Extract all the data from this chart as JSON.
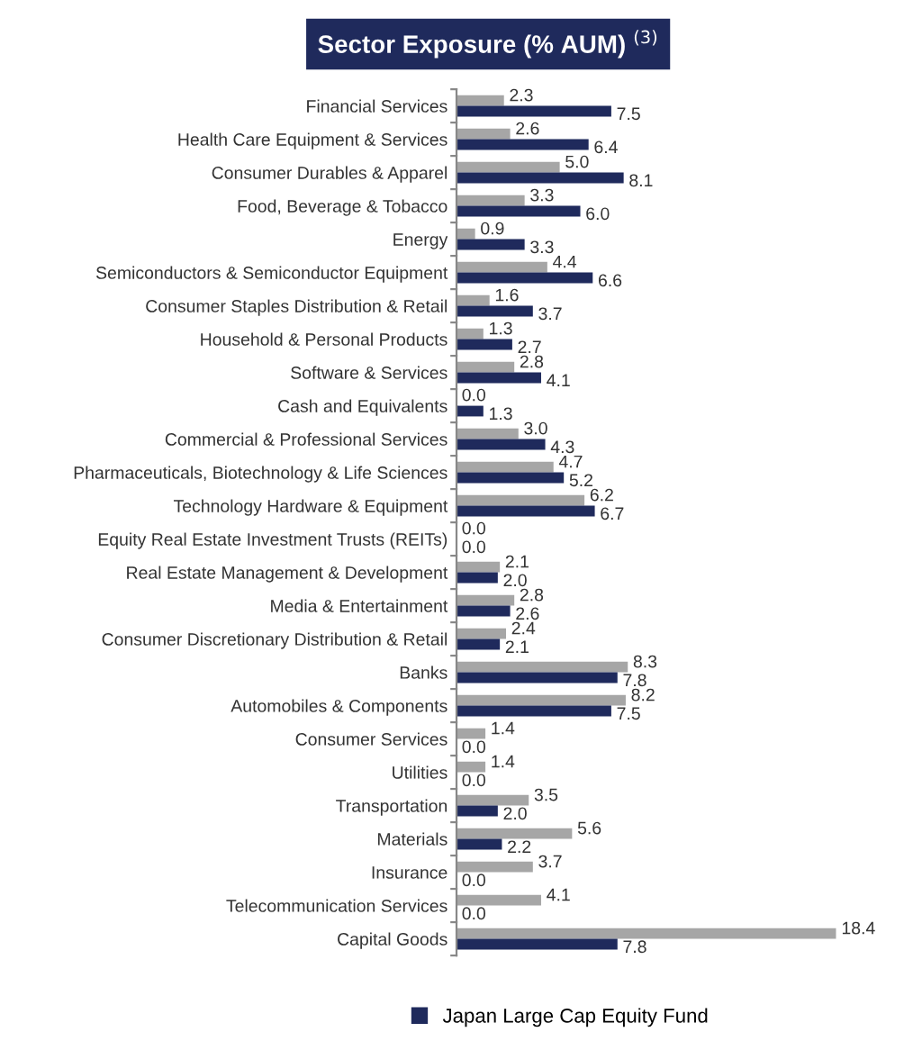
{
  "chart_data": {
    "type": "bar",
    "orientation": "horizontal",
    "title": "Sector Exposure (% AUM) $^{(3)}$",
    "categories": [
      "Financial Services",
      "Health Care Equipment & Services",
      "Consumer Durables & Apparel",
      "Food, Beverage & Tobacco",
      "Energy",
      "Semiconductors & Semiconductor Equipment",
      "Consumer Staples Distribution & Retail",
      "Household & Personal Products",
      "Software & Services",
      "Cash and Equivalents",
      "Commercial & Professional Services",
      "Pharmaceuticals, Biotechnology & Life Sciences",
      "Technology Hardware & Equipment",
      "Equity Real Estate Investment Trusts (REITs)",
      "Real Estate Management & Development",
      "Media & Entertainment",
      "Consumer Discretionary Distribution & Retail",
      "Banks",
      "Automobiles & Components",
      "Consumer Services",
      "Utilities",
      "Transportation",
      "Materials",
      "Insurance",
      "Telecommunication Services",
      "Capital Goods"
    ],
    "series": [
      {
        "color": "#a6a6a6",
        "values": [
          2.3,
          2.6,
          5.0,
          3.3,
          0.9,
          4.4,
          1.6,
          1.3,
          2.8,
          0.0,
          3.0,
          4.7,
          6.2,
          0.0,
          2.1,
          2.8,
          2.4,
          8.3,
          8.2,
          1.4,
          1.4,
          3.5,
          5.6,
          3.7,
          4.1,
          18.4
        ],
        "value_labels": [
          "2.3",
          "2.6",
          "5.0",
          "3.3",
          "0.9",
          "4.4",
          "1.6",
          "1.3",
          "2.8",
          "0.0",
          "3.0",
          "4.7",
          "6.2",
          "0.0",
          "2.1",
          "2.8",
          "2.4",
          "8.3",
          "8.2",
          "1.4",
          "1.4",
          "3.5",
          "5.6",
          "3.7",
          "4.1",
          "18.4"
        ]
      },
      {
        "name": "Japan Large Cap Equity Fund",
        "color": "#1f2a5c",
        "values": [
          7.5,
          6.4,
          8.1,
          6.0,
          3.3,
          6.6,
          3.7,
          2.7,
          4.1,
          1.3,
          4.3,
          5.2,
          6.7,
          0.0,
          2.0,
          2.6,
          2.1,
          7.8,
          7.5,
          0.0,
          0.0,
          2.0,
          2.2,
          0.0,
          0.0,
          7.8
        ],
        "value_labels": [
          "7.5",
          "6.4",
          "8.1",
          "6.0",
          "3.3",
          "6.6",
          "3.7",
          "2.7",
          "4.1",
          "1.3",
          "4.3",
          "5.2",
          "6.7",
          "0.0",
          "2.0",
          "2.6",
          "2.1",
          "7.8",
          "7.5",
          "0.0",
          "0.0",
          "2.0",
          "2.2",
          "0.0",
          "0.0",
          "7.8"
        ]
      }
    ],
    "legend": "bottom",
    "grid": false,
    "tick_labels": "y"
  }
}
